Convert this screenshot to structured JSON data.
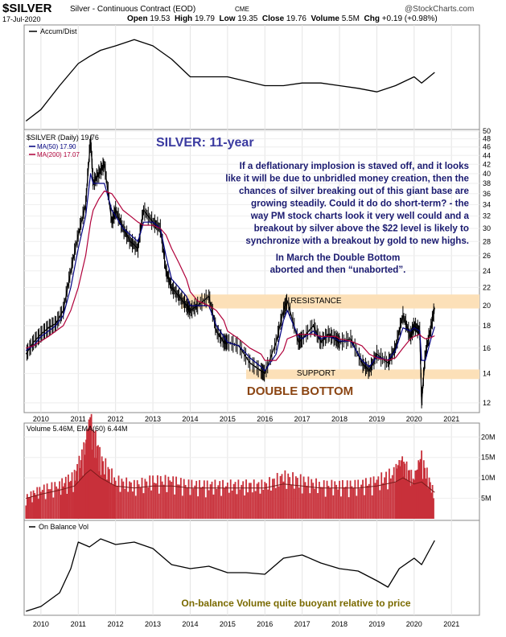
{
  "header": {
    "symbol": "$SILVER",
    "name": "Silver - Continuous Contract (EOD)",
    "exchange": "CME",
    "date": "17-Jul-2020",
    "watermark": "@StockCharts.com",
    "open_label": "Open",
    "open": "19.53",
    "high_label": "High",
    "high": "19.79",
    "low_label": "Low",
    "low": "19.35",
    "close_label": "Close",
    "close": "19.76",
    "volume_label": "Volume",
    "volume": "5.5M",
    "chg_label": "Chg",
    "chg": "+0.19 (+0.98%)"
  },
  "colors": {
    "price": "#000000",
    "ma50": "#000080",
    "ma200": "#b0003a",
    "volume": "#c8303a",
    "band": "#fce0b8",
    "title": "#3a3aa0",
    "annotation_dark": "#1a1a70",
    "double_bottom": "#8b4513",
    "olive": "#7a6a00"
  },
  "panels": {
    "accum_label": "Accum/Dist",
    "price_legend": {
      "price": "$SILVER (Daily) 19.76",
      "ma50": "MA(50) 17.90",
      "ma200": "MA(200) 17.07"
    },
    "volume_legend": "Volume 5.46M, EMA(60) 6.44M",
    "obv_label": "On Balance Vol"
  },
  "annotations": {
    "title": "SILVER: 11-year",
    "commentary": [
      "If a deflationary implosion is staved off, and it looks",
      "like it will be due to unbridled money creation, then the",
      "chances of silver breaking out of this giant base are",
      "growing steadily. Could it do do short-term? - the",
      "way PM stock charts look it very well could and a",
      "breakout by silver above the $22 level is likely to",
      "synchronize with a breakout by gold to new highs."
    ],
    "march_note": [
      "In March the Double Bottom",
      "aborted and then “unaborted”."
    ],
    "resistance": "RESISTANCE",
    "support": "SUPPORT",
    "double_bottom": "DOUBLE BOTTOM",
    "obv_note": "On-balance Volume quite buoyant relative to price"
  },
  "chart_data": [
    {
      "type": "line",
      "panel": "accum_dist",
      "x": [
        2009.6,
        2010.0,
        2010.5,
        2011.0,
        2011.3,
        2011.6,
        2012.0,
        2012.5,
        2013.0,
        2013.5,
        2014.0,
        2014.5,
        2015.0,
        2015.5,
        2016.0,
        2016.5,
        2017.0,
        2017.5,
        2018.0,
        2018.5,
        2019.0,
        2019.5,
        2020.0,
        2020.2,
        2020.55
      ],
      "series": [
        {
          "values": [
            0.05,
            0.18,
            0.45,
            0.7,
            0.78,
            0.85,
            0.9,
            0.97,
            0.9,
            0.75,
            0.55,
            0.55,
            0.55,
            0.5,
            0.45,
            0.45,
            0.48,
            0.48,
            0.45,
            0.42,
            0.38,
            0.45,
            0.55,
            0.48,
            0.6
          ]
        }
      ]
    },
    {
      "type": "line",
      "panel": "price",
      "x_ticks": [
        "2010",
        "2011",
        "2012",
        "2013",
        "2014",
        "2015",
        "2016",
        "2017",
        "2018",
        "2019",
        "2020",
        "2021"
      ],
      "y_ticks": [
        12,
        14,
        16,
        18,
        20,
        22,
        24,
        26,
        28,
        30,
        32,
        34,
        36,
        38,
        40,
        42,
        44,
        46,
        48,
        50
      ],
      "y_scale": "log",
      "ylim": [
        11.5,
        50
      ],
      "x": [
        2009.6,
        2009.8,
        2010.0,
        2010.2,
        2010.4,
        2010.6,
        2010.8,
        2011.0,
        2011.2,
        2011.33,
        2011.4,
        2011.55,
        2011.7,
        2011.9,
        2012.0,
        2012.2,
        2012.4,
        2012.6,
        2012.75,
        2013.0,
        2013.2,
        2013.35,
        2013.5,
        2013.7,
        2013.9,
        2014.0,
        2014.2,
        2014.5,
        2014.7,
        2014.9,
        2015.0,
        2015.3,
        2015.6,
        2015.9,
        2016.0,
        2016.3,
        2016.5,
        2016.6,
        2016.9,
        2017.0,
        2017.3,
        2017.5,
        2017.7,
        2017.9,
        2018.0,
        2018.3,
        2018.6,
        2018.8,
        2019.0,
        2019.3,
        2019.5,
        2019.7,
        2019.9,
        2020.0,
        2020.15,
        2020.2,
        2020.3,
        2020.45,
        2020.55
      ],
      "series": [
        {
          "name": "$SILVER (Daily) 19.76",
          "values": [
            15.5,
            16.5,
            17.2,
            17.8,
            18.2,
            19.5,
            24,
            29,
            34,
            48,
            38,
            40,
            42,
            31,
            33,
            30,
            28,
            27,
            33,
            31,
            30,
            24,
            22,
            21,
            20,
            19.5,
            20,
            21,
            17.5,
            16.5,
            16.5,
            16.2,
            14.8,
            14.2,
            14,
            16.5,
            19.5,
            20.5,
            16.5,
            16.8,
            18,
            16.5,
            17.2,
            16.8,
            16.5,
            16.8,
            14.8,
            14.2,
            15.5,
            14.8,
            16,
            19,
            17,
            18,
            17.5,
            12,
            15.5,
            17.8,
            19.76
          ]
        },
        {
          "name": "MA(50) 17.90",
          "values": [
            15.8,
            16.2,
            17,
            17.5,
            18,
            19,
            22,
            27,
            32,
            40,
            38,
            38,
            38,
            33,
            32,
            30,
            29,
            28,
            31,
            31,
            30,
            26,
            23,
            22,
            21,
            20,
            20,
            20,
            18,
            17,
            16.5,
            16.2,
            15.2,
            14.5,
            14.2,
            15.5,
            18.5,
            19.5,
            17,
            16.8,
            17.5,
            16.8,
            17,
            16.8,
            16.6,
            16.6,
            15,
            14.5,
            15.3,
            15,
            15.8,
            17.8,
            17.5,
            17.8,
            17.5,
            15,
            15,
            16.8,
            17.9
          ]
        },
        {
          "name": "MA(200) 17.07",
          "values": [
            16,
            16.2,
            16.6,
            17,
            17.5,
            18,
            19.5,
            22,
            26,
            31,
            33,
            35,
            36.5,
            36,
            35,
            33,
            32,
            31,
            30.5,
            30.5,
            30,
            29,
            27,
            25,
            23,
            21.5,
            20.5,
            20,
            19.5,
            18.5,
            17.5,
            16.8,
            16,
            15.5,
            15,
            15,
            15.8,
            16.8,
            17.2,
            17.2,
            17.2,
            17,
            17,
            17,
            16.8,
            16.6,
            16.2,
            15.5,
            15.2,
            15,
            15.2,
            16,
            16.8,
            17,
            17.2,
            17,
            16.8,
            16.9,
            17.07
          ]
        }
      ],
      "resistance_band": [
        19.7,
        21.2
      ],
      "support_band": [
        13.6,
        14.3
      ]
    },
    {
      "type": "bar",
      "panel": "volume",
      "y_ticks": [
        "5M",
        "10M",
        "15M",
        "20M"
      ],
      "y_tick_values": [
        5,
        10,
        15,
        20
      ],
      "ylim": [
        0,
        23
      ],
      "x": [
        2009.6,
        2010.0,
        2010.5,
        2010.9,
        2011.2,
        2011.33,
        2011.6,
        2012.0,
        2012.5,
        2013.0,
        2013.5,
        2014.0,
        2014.5,
        2015.0,
        2015.5,
        2016.0,
        2016.5,
        2017.0,
        2017.5,
        2018.0,
        2018.5,
        2019.0,
        2019.5,
        2019.7,
        2020.0,
        2020.2,
        2020.55
      ],
      "series": [
        {
          "name": "Volume 5.46M",
          "values": [
            5,
            7,
            8,
            10,
            17,
            22,
            14,
            9,
            8,
            9,
            9,
            8,
            8,
            8,
            8,
            8,
            10,
            9,
            8,
            8,
            8,
            9,
            11,
            13,
            9,
            14,
            5.46
          ]
        },
        {
          "name": "EMA(60) 6.44M",
          "values": [
            5,
            6,
            7,
            8,
            11,
            12,
            10,
            8,
            7.5,
            8,
            8,
            7.5,
            7.5,
            7.5,
            7.5,
            7.5,
            8.5,
            8,
            7.5,
            7.5,
            7.5,
            8,
            9,
            10,
            8.5,
            9,
            6.44
          ]
        }
      ]
    },
    {
      "type": "line",
      "panel": "on_balance_volume",
      "x": [
        2009.6,
        2010.0,
        2010.5,
        2010.8,
        2011.0,
        2011.3,
        2011.6,
        2012.0,
        2012.5,
        2013.0,
        2013.5,
        2014.0,
        2014.5,
        2015.0,
        2015.5,
        2016.0,
        2016.5,
        2017.0,
        2017.5,
        2018.0,
        2018.5,
        2019.0,
        2019.3,
        2019.6,
        2020.0,
        2020.2,
        2020.55
      ],
      "series": [
        {
          "values": [
            0.02,
            0.08,
            0.25,
            0.55,
            0.88,
            0.82,
            0.92,
            0.85,
            0.88,
            0.8,
            0.6,
            0.55,
            0.58,
            0.5,
            0.5,
            0.48,
            0.68,
            0.72,
            0.62,
            0.55,
            0.52,
            0.4,
            0.32,
            0.55,
            0.68,
            0.6,
            0.9
          ]
        }
      ]
    }
  ],
  "x_axis": [
    "2010",
    "2011",
    "2012",
    "2013",
    "2014",
    "2015",
    "2016",
    "2017",
    "2018",
    "2019",
    "2020",
    "2021"
  ]
}
